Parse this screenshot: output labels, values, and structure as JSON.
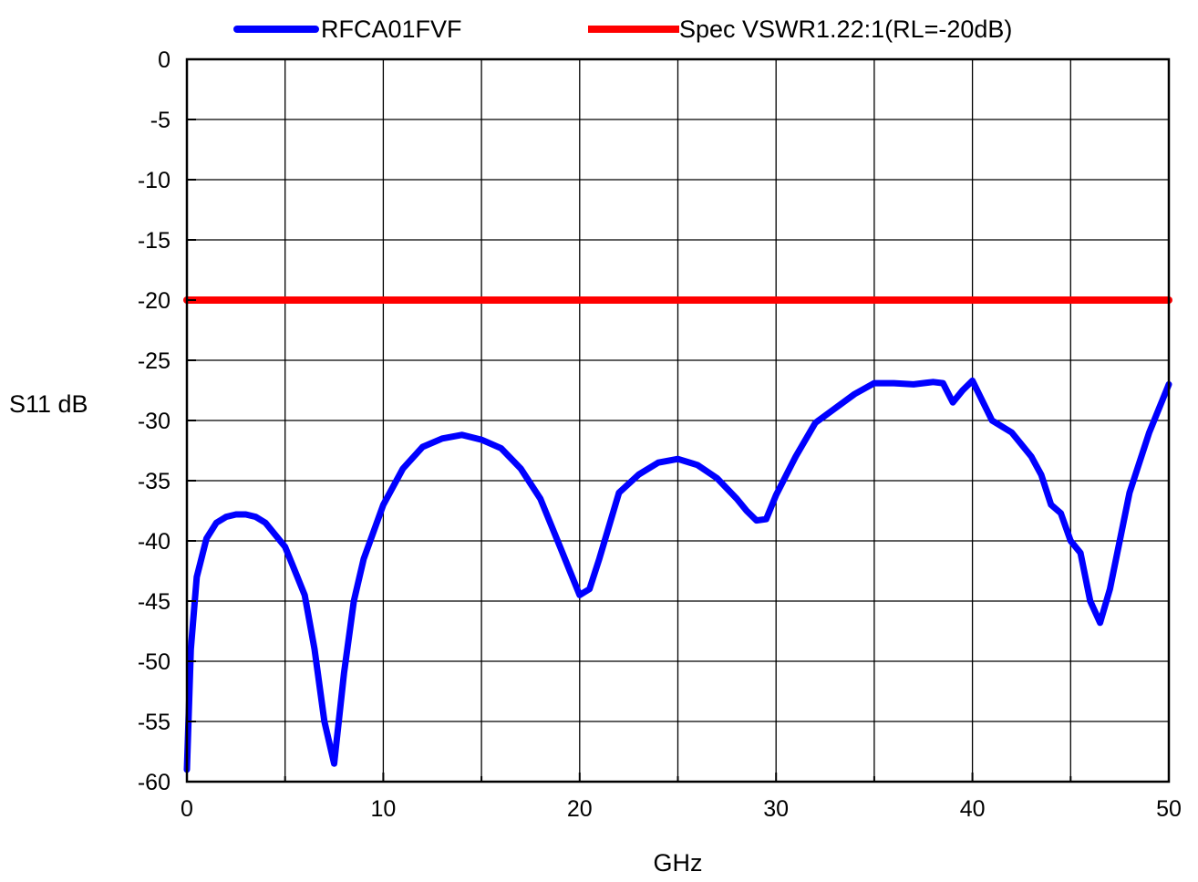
{
  "chart_data": {
    "type": "line",
    "title": "",
    "xlabel": "GHz",
    "ylabel": "S11 dB",
    "xlim": [
      0,
      50
    ],
    "ylim": [
      -60,
      0
    ],
    "x_ticks": [
      0,
      10,
      20,
      30,
      40,
      50
    ],
    "x_tick_labels": [
      "0",
      "10",
      "20",
      "30",
      "40",
      "50"
    ],
    "y_ticks": [
      0,
      -5,
      -10,
      -15,
      -20,
      -25,
      -30,
      -35,
      -40,
      -45,
      -50,
      -55,
      -60
    ],
    "y_tick_labels": [
      "0",
      "-5",
      "-10",
      "-15",
      "-20",
      "-25",
      "-30",
      "-35",
      "-40",
      "-45",
      "-50",
      "-55",
      "-60"
    ],
    "grid": true,
    "legend_position": "top",
    "series": [
      {
        "name": "RFCA01FVF",
        "color": "#0000ff",
        "x": [
          0,
          0.2,
          0.5,
          1,
          1.5,
          2,
          2.5,
          3,
          3.5,
          4,
          5,
          5.5,
          6,
          6.5,
          7,
          7.5,
          8,
          8.5,
          9,
          10,
          11,
          12,
          13,
          14,
          15,
          16,
          17,
          18,
          19,
          19.5,
          20,
          20.5,
          21,
          22,
          23,
          24,
          25,
          26,
          27,
          28,
          28.5,
          29,
          29.5,
          30,
          31,
          32,
          33,
          34,
          35,
          36,
          37,
          38,
          38.5,
          39,
          39.5,
          40,
          41,
          42,
          43,
          43.5,
          44,
          44.5,
          45,
          45.5,
          46,
          46.5,
          47,
          48,
          49,
          50
        ],
        "values": [
          -59,
          -49,
          -43,
          -39.8,
          -38.5,
          -38,
          -37.8,
          -37.8,
          -38,
          -38.5,
          -40.5,
          -42.5,
          -44.5,
          -49,
          -55,
          -58.5,
          -51,
          -45,
          -41.5,
          -37,
          -34,
          -32.2,
          -31.5,
          -31.2,
          -31.6,
          -32.3,
          -34,
          -36.5,
          -40.5,
          -42.5,
          -44.5,
          -44,
          -41.5,
          -36,
          -34.5,
          -33.5,
          -33.2,
          -33.7,
          -34.8,
          -36.5,
          -37.5,
          -38.3,
          -38.2,
          -36.2,
          -33,
          -30.2,
          -29,
          -27.8,
          -26.9,
          -26.9,
          -27,
          -26.8,
          -26.9,
          -28.5,
          -27.5,
          -26.7,
          -30,
          -31,
          -33,
          -34.5,
          -37,
          -37.7,
          -40,
          -41,
          -45,
          -46.8,
          -44,
          -36,
          -31,
          -27
        ]
      },
      {
        "name": "Spec VSWR1.22:1(RL=-20dB)",
        "color": "#ff0000",
        "x": [
          0,
          50
        ],
        "values": [
          -20,
          -20
        ]
      }
    ]
  }
}
